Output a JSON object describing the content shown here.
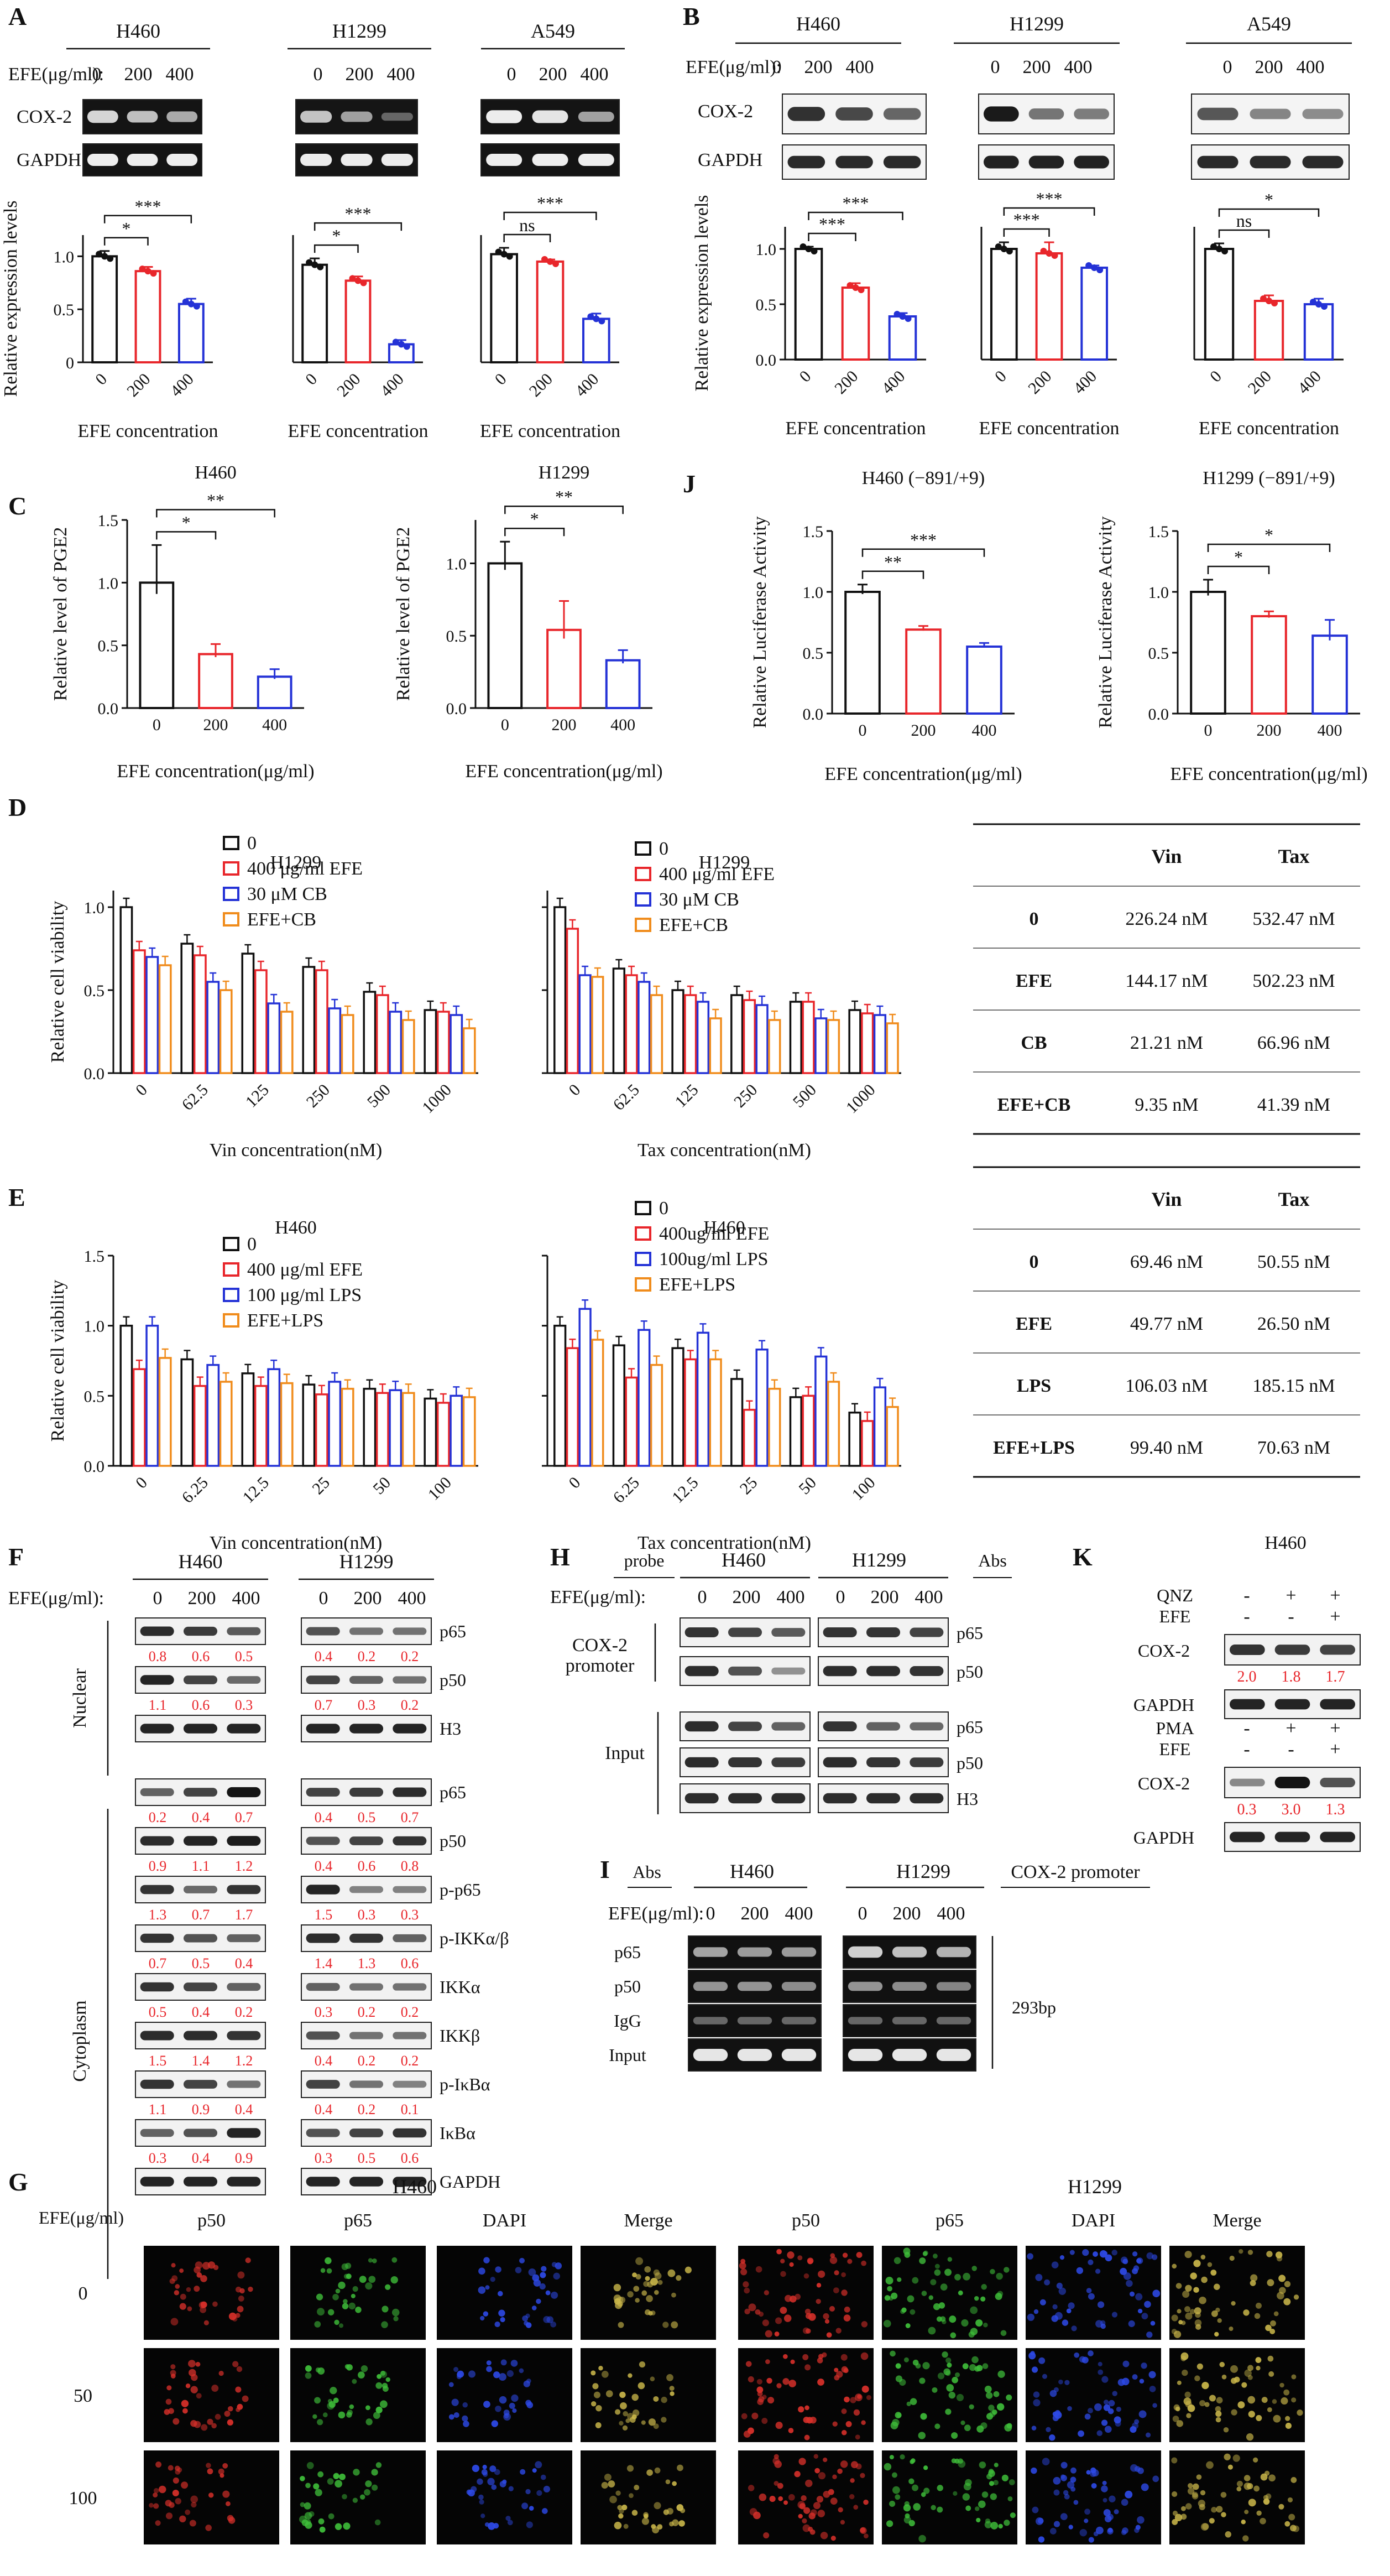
{
  "panels": {
    "A": {
      "letter": "A",
      "cells": [
        "H460",
        "H1299",
        "A549"
      ],
      "efe_label": "EFE(μg/ml):",
      "doses": [
        "0",
        "200",
        "400"
      ],
      "bands": [
        "COX-2",
        "GAPDH"
      ],
      "ylabel": "Relative expression levels",
      "xlabel": "EFE concentration"
    },
    "B": {
      "letter": "B",
      "cells": [
        "H460",
        "H1299",
        "A549"
      ],
      "efe_label": "EFE(μg/ml):",
      "doses": [
        "0",
        "200",
        "400"
      ],
      "bands": [
        "COX-2",
        "GAPDH"
      ],
      "ylabel": "Relative expression levels",
      "xlabel": "EFE concentration"
    },
    "C": {
      "letter": "C",
      "ylabel": "Relative level of PGE2",
      "xlabel": "EFE concentration(μg/ml)"
    },
    "J": {
      "letter": "J",
      "ylabel": "Relative Luciferase Activity",
      "xlabel": "EFE concentration(μg/ml)"
    },
    "D": {
      "letter": "D",
      "legend": [
        "0",
        "400 μg/ml EFE",
        "30 μM CB",
        "EFE+CB"
      ],
      "ylabel": "Relative cell viability",
      "table": {
        "header": [
          "",
          "Vin",
          "Tax"
        ],
        "rows": [
          [
            "0",
            "226.24 nM",
            "532.47 nM"
          ],
          [
            "EFE",
            "144.17 nM",
            "502.23 nM"
          ],
          [
            "CB",
            "21.21 nM",
            "66.96 nM"
          ],
          [
            "EFE+CB",
            "9.35 nM",
            "41.39 nM"
          ]
        ]
      }
    },
    "E": {
      "letter": "E",
      "legend_left": [
        "0",
        "400 μg/ml EFE",
        "100 μg/ml LPS",
        "EFE+LPS"
      ],
      "legend_right": [
        "0",
        "400ug/ml EFE",
        "100ug/ml LPS",
        "EFE+LPS"
      ],
      "ylabel": "Relative cell viability",
      "table": {
        "header": [
          "",
          "Vin",
          "Tax"
        ],
        "rows": [
          [
            "0",
            "69.46 nM",
            "50.55 nM"
          ],
          [
            "EFE",
            "49.77 nM",
            "26.50 nM"
          ],
          [
            "LPS",
            "106.03 nM",
            "185.15 nM"
          ],
          [
            "EFE+LPS",
            "99.40 nM",
            "70.63 nM"
          ]
        ]
      }
    },
    "F": {
      "letter": "F",
      "efe_label": "EFE(μg/ml):",
      "cells": [
        "H460",
        "H1299"
      ],
      "doses": [
        "0",
        "200",
        "400"
      ],
      "nuclear": "Nuclear",
      "cytoplasm": "Cytoplasm",
      "rows": [
        {
          "label": "p65",
          "group": "nuc",
          "h460": [
            "0.8",
            "0.6",
            "0.5"
          ],
          "h1299": [
            "0.4",
            "0.2",
            "0.2"
          ]
        },
        {
          "label": "p50",
          "group": "nuc",
          "h460": [
            "1.1",
            "0.6",
            "0.3"
          ],
          "h1299": [
            "0.7",
            "0.3",
            "0.2"
          ]
        },
        {
          "label": "H3",
          "group": "nuc",
          "h460": [],
          "h1299": []
        },
        {
          "label": "p65",
          "group": "cyt",
          "h460": [
            "0.2",
            "0.4",
            "0.7"
          ],
          "h1299": [
            "0.4",
            "0.5",
            "0.7"
          ]
        },
        {
          "label": "p50",
          "group": "cyt",
          "h460": [
            "0.9",
            "1.1",
            "1.2"
          ],
          "h1299": [
            "0.4",
            "0.6",
            "0.8"
          ]
        },
        {
          "label": "p-p65",
          "group": "cyt",
          "h460": [
            "1.3",
            "0.7",
            "1.7"
          ],
          "h1299": [
            "1.5",
            "0.3",
            "0.3"
          ]
        },
        {
          "label": "p-IKKα/β",
          "group": "cyt",
          "h460": [
            "0.7",
            "0.5",
            "0.4"
          ],
          "h1299": [
            "1.4",
            "1.3",
            "0.6"
          ]
        },
        {
          "label": "IKKα",
          "group": "cyt",
          "h460": [
            "0.5",
            "0.4",
            "0.2"
          ],
          "h1299": [
            "0.3",
            "0.2",
            "0.2"
          ]
        },
        {
          "label": "IKKβ",
          "group": "cyt",
          "h460": [
            "1.5",
            "1.4",
            "1.2"
          ],
          "h1299": [
            "0.4",
            "0.2",
            "0.2"
          ]
        },
        {
          "label": "p-IκBα",
          "group": "cyt",
          "h460": [
            "1.1",
            "0.9",
            "0.4"
          ],
          "h1299": [
            "0.4",
            "0.2",
            "0.1"
          ]
        },
        {
          "label": "IκBα",
          "group": "cyt",
          "h460": [
            "0.3",
            "0.4",
            "0.9"
          ],
          "h1299": [
            "0.3",
            "0.5",
            "0.6"
          ]
        },
        {
          "label": "GAPDH",
          "group": "cyt",
          "h460": [],
          "h1299": []
        }
      ]
    },
    "H": {
      "letter": "H",
      "probe": "probe",
      "abs": "Abs",
      "efe_label": "EFE(μg/ml):",
      "cells": [
        "H460",
        "H1299"
      ],
      "doses": [
        "0",
        "200",
        "400"
      ],
      "promoter": [
        "COX-2",
        "promoter"
      ],
      "input": "Input",
      "rows": [
        "p65",
        "p50",
        "p65",
        "p50",
        "H3"
      ]
    },
    "I": {
      "letter": "I",
      "abs": "Abs",
      "cells": [
        "H460",
        "H1299"
      ],
      "efe_label": "EFE(μg/ml):",
      "doses": [
        "0",
        "200",
        "400"
      ],
      "title": "COX-2 promoter",
      "rows": [
        "p65",
        "p50",
        "IgG",
        "Input"
      ],
      "size": "293bp"
    },
    "K": {
      "letter": "K",
      "cell": "H460",
      "top": {
        "treat": [
          {
            "name": "QNZ",
            "signs": [
              "-",
              "+",
              "+"
            ]
          },
          {
            "name": "EFE",
            "signs": [
              "-",
              "-",
              "+"
            ]
          }
        ],
        "bands": [
          "COX-2",
          "GAPDH"
        ],
        "values": [
          "2.0",
          "1.8",
          "1.7"
        ]
      },
      "bottom": {
        "treat": [
          {
            "name": "PMA",
            "signs": [
              "-",
              "+",
              "+"
            ]
          },
          {
            "name": "EFE",
            "signs": [
              "-",
              "-",
              "+"
            ]
          }
        ],
        "bands": [
          "COX-2",
          "GAPDH"
        ],
        "values": [
          "0.3",
          "3.0",
          "1.3"
        ]
      }
    },
    "G": {
      "letter": "G",
      "efe_label": "EFE(μg/ml)",
      "cells": [
        "H460",
        "H1299"
      ],
      "stains": [
        "p50",
        "p65",
        "DAPI",
        "Merge"
      ],
      "doses": [
        "0",
        "50",
        "100"
      ],
      "stain_colors": [
        "#d8302a",
        "#3fbf3a",
        "#2d49e6",
        "#c9b64a"
      ]
    }
  },
  "chart_data": [
    {
      "id": "A-H460",
      "type": "bar",
      "title": "H460",
      "categories": [
        "0",
        "200",
        "400"
      ],
      "values": [
        1.0,
        0.86,
        0.55
      ],
      "errors": [
        0.05,
        0.04,
        0.05
      ],
      "ylim": [
        0,
        1.2
      ],
      "yticks": [
        "0",
        "0.5",
        "1.0"
      ],
      "ylabel": "Relative expression levels",
      "xlabel": "EFE concentration",
      "sig": [
        {
          "a": 0,
          "b": 1,
          "t": "*"
        },
        {
          "a": 0,
          "b": 2,
          "t": "***"
        }
      ]
    },
    {
      "id": "A-H1299",
      "type": "bar",
      "title": "H1299",
      "categories": [
        "0",
        "200",
        "400"
      ],
      "values": [
        0.92,
        0.77,
        0.17
      ],
      "errors": [
        0.06,
        0.04,
        0.04
      ],
      "ylim": [
        0,
        1.2
      ],
      "yticks": [],
      "ylabel": "",
      "xlabel": "EFE concentration",
      "sig": [
        {
          "a": 0,
          "b": 1,
          "t": "*"
        },
        {
          "a": 0,
          "b": 2,
          "t": "***"
        }
      ]
    },
    {
      "id": "A-A549",
      "type": "bar",
      "title": "A549",
      "categories": [
        "0",
        "200",
        "400"
      ],
      "values": [
        1.02,
        0.95,
        0.41
      ],
      "errors": [
        0.06,
        0.02,
        0.05
      ],
      "ylim": [
        0,
        1.2
      ],
      "yticks": [],
      "ylabel": "",
      "xlabel": "EFE concentration",
      "sig": [
        {
          "a": 0,
          "b": 1,
          "t": "ns"
        },
        {
          "a": 0,
          "b": 2,
          "t": "***"
        }
      ]
    },
    {
      "id": "B-H460",
      "type": "bar",
      "title": "H460",
      "categories": [
        "0",
        "200",
        "400"
      ],
      "values": [
        1.0,
        0.65,
        0.39
      ],
      "errors": [
        0.02,
        0.04,
        0.03
      ],
      "ylim": [
        0,
        1.2
      ],
      "yticks": [
        "0.0",
        "0.5",
        "1.0"
      ],
      "ylabel": "Relative expression levels",
      "xlabel": "EFE concentration",
      "sig": [
        {
          "a": 0,
          "b": 1,
          "t": "***"
        },
        {
          "a": 0,
          "b": 2,
          "t": "***"
        }
      ]
    },
    {
      "id": "B-H1299",
      "type": "bar",
      "title": "H1299",
      "categories": [
        "0",
        "200",
        "400"
      ],
      "values": [
        1.0,
        0.96,
        0.83
      ],
      "errors": [
        0.06,
        0.1,
        0.02
      ],
      "ylim": [
        0,
        1.2
      ],
      "yticks": [],
      "ylabel": "",
      "xlabel": "EFE concentration",
      "sig": [
        {
          "a": 0,
          "b": 1,
          "t": "***"
        },
        {
          "a": 0,
          "b": 2,
          "t": "***"
        }
      ]
    },
    {
      "id": "B-A549",
      "type": "bar",
      "title": "A549",
      "categories": [
        "0",
        "200",
        "400"
      ],
      "values": [
        1.0,
        0.53,
        0.5
      ],
      "errors": [
        0.05,
        0.05,
        0.05
      ],
      "ylim": [
        0,
        1.2
      ],
      "yticks": [],
      "ylabel": "",
      "xlabel": "EFE concentration",
      "sig": [
        {
          "a": 0,
          "b": 1,
          "t": "ns"
        },
        {
          "a": 0,
          "b": 2,
          "t": "*"
        }
      ]
    },
    {
      "id": "C-H460",
      "type": "bar",
      "title": "H460",
      "categories": [
        "0",
        "200",
        "400"
      ],
      "values": [
        1.0,
        0.43,
        0.25
      ],
      "errors": [
        0.3,
        0.08,
        0.06
      ],
      "ylim": [
        0,
        1.5
      ],
      "yticks": [
        "0.0",
        "0.5",
        "1.0",
        "1.5"
      ],
      "ylabel": "Relative  level of PGE2",
      "xlabel": "EFE concentration(μg/ml)",
      "sig": [
        {
          "a": 0,
          "b": 1,
          "t": "*"
        },
        {
          "a": 0,
          "b": 2,
          "t": "**"
        }
      ]
    },
    {
      "id": "C-H1299",
      "type": "bar",
      "title": "H1299",
      "categories": [
        "0",
        "200",
        "400"
      ],
      "values": [
        1.0,
        0.54,
        0.33
      ],
      "errors": [
        0.15,
        0.2,
        0.07
      ],
      "ylim": [
        0,
        1.3
      ],
      "yticks": [
        "0.0",
        "0.5",
        "1.0"
      ],
      "ylabel": "Relative  level of PGE2",
      "xlabel": "EFE concentration(μg/ml)",
      "sig": [
        {
          "a": 0,
          "b": 1,
          "t": "*"
        },
        {
          "a": 0,
          "b": 2,
          "t": "**"
        }
      ]
    },
    {
      "id": "J-H460",
      "type": "bar",
      "title": "H460 (−891/+9)",
      "categories": [
        "0",
        "200",
        "400"
      ],
      "values": [
        1.0,
        0.69,
        0.55
      ],
      "errors": [
        0.06,
        0.03,
        0.03
      ],
      "ylim": [
        0,
        1.5
      ],
      "yticks": [
        "0.0",
        "0.5",
        "1.0",
        "1.5"
      ],
      "ylabel": "Relative Luciferase Activity",
      "xlabel": "EFE concentration(μg/ml)",
      "sig": [
        {
          "a": 0,
          "b": 1,
          "t": "**"
        },
        {
          "a": 0,
          "b": 2,
          "t": "***"
        }
      ]
    },
    {
      "id": "J-H1299",
      "type": "bar",
      "title": "H1299 (−891/+9)",
      "categories": [
        "0",
        "200",
        "400"
      ],
      "values": [
        1.0,
        0.8,
        0.64
      ],
      "errors": [
        0.1,
        0.04,
        0.13
      ],
      "ylim": [
        0,
        1.5
      ],
      "yticks": [
        "0.0",
        "0.5",
        "1.0",
        "1.5"
      ],
      "ylabel": "Relative Luciferase Activity",
      "xlabel": "EFE concentration(μg/ml)",
      "sig": [
        {
          "a": 0,
          "b": 1,
          "t": "*"
        },
        {
          "a": 0,
          "b": 2,
          "t": "*"
        }
      ]
    },
    {
      "id": "D-Vin",
      "type": "grouped-bar",
      "title": "H1299",
      "categories": [
        "0",
        "62.5",
        "125",
        "250",
        "500",
        "1000"
      ],
      "xlabel": "Vin concentration(nM)",
      "ylabel": "Relative cell viability",
      "ylim": [
        0,
        1.1
      ],
      "yticks": [
        "0.0",
        "0.5",
        "1.0"
      ],
      "series": [
        {
          "name": "0",
          "values": [
            1.0,
            0.78,
            0.72,
            0.64,
            0.49,
            0.38
          ]
        },
        {
          "name": "400 μg/ml EFE",
          "values": [
            0.74,
            0.71,
            0.62,
            0.62,
            0.47,
            0.37
          ]
        },
        {
          "name": "30 μM CB",
          "values": [
            0.7,
            0.55,
            0.42,
            0.39,
            0.37,
            0.35
          ]
        },
        {
          "name": "EFE+CB",
          "values": [
            0.65,
            0.5,
            0.37,
            0.35,
            0.32,
            0.27
          ]
        }
      ]
    },
    {
      "id": "D-Tax",
      "type": "grouped-bar",
      "title": "H1299",
      "categories": [
        "0",
        "62.5",
        "125",
        "250",
        "500",
        "1000"
      ],
      "xlabel": "Tax concentration(nM)",
      "ylabel": "",
      "ylim": [
        0,
        1.1
      ],
      "yticks": [],
      "series": [
        {
          "name": "0",
          "values": [
            1.0,
            0.63,
            0.5,
            0.47,
            0.43,
            0.38
          ]
        },
        {
          "name": "400 μg/ml EFE",
          "values": [
            0.87,
            0.59,
            0.47,
            0.44,
            0.43,
            0.36
          ]
        },
        {
          "name": "30 μM CB",
          "values": [
            0.59,
            0.55,
            0.43,
            0.41,
            0.33,
            0.35
          ]
        },
        {
          "name": "EFE+CB",
          "values": [
            0.58,
            0.47,
            0.33,
            0.32,
            0.32,
            0.3
          ]
        }
      ]
    },
    {
      "id": "E-Vin",
      "type": "grouped-bar",
      "title": "H460",
      "categories": [
        "0",
        "6.25",
        "12.5",
        "25",
        "50",
        "100"
      ],
      "xlabel": "Vin concentration(nM)",
      "ylabel": "Relative cell viability",
      "ylim": [
        0,
        1.5
      ],
      "yticks": [
        "0.0",
        "0.5",
        "1.0",
        "1.5"
      ],
      "series": [
        {
          "name": "0",
          "values": [
            1.0,
            0.76,
            0.66,
            0.58,
            0.55,
            0.48
          ]
        },
        {
          "name": "400 μg/ml EFE",
          "values": [
            0.69,
            0.57,
            0.57,
            0.51,
            0.52,
            0.45
          ]
        },
        {
          "name": "100 μg/ml LPS",
          "values": [
            1.0,
            0.72,
            0.69,
            0.6,
            0.54,
            0.5
          ]
        },
        {
          "name": "EFE+LPS",
          "values": [
            0.77,
            0.6,
            0.59,
            0.55,
            0.52,
            0.49
          ]
        }
      ]
    },
    {
      "id": "E-Tax",
      "type": "grouped-bar",
      "title": "H460",
      "categories": [
        "0",
        "6.25",
        "12.5",
        "25",
        "50",
        "100"
      ],
      "xlabel": "Tax concentration(nM)",
      "ylabel": "",
      "ylim": [
        0,
        1.5
      ],
      "yticks": [],
      "series": [
        {
          "name": "0",
          "values": [
            1.0,
            0.86,
            0.84,
            0.62,
            0.49,
            0.38
          ]
        },
        {
          "name": "400ug/ml EFE",
          "values": [
            0.84,
            0.63,
            0.76,
            0.4,
            0.5,
            0.32
          ]
        },
        {
          "name": "100ug/ml LPS",
          "values": [
            1.12,
            0.97,
            0.95,
            0.83,
            0.78,
            0.56
          ]
        },
        {
          "name": "EFE+LPS",
          "values": [
            0.9,
            0.72,
            0.76,
            0.55,
            0.6,
            0.42
          ]
        }
      ]
    }
  ]
}
